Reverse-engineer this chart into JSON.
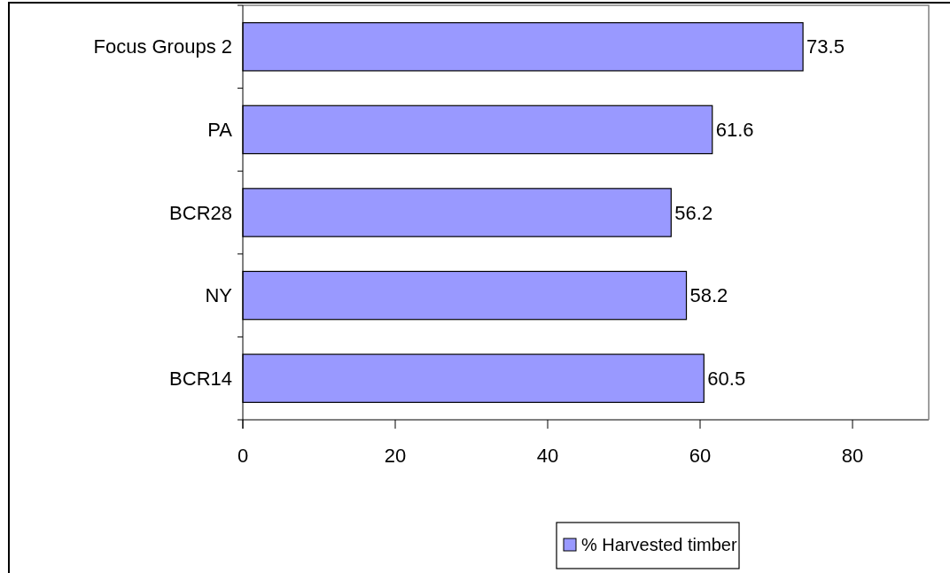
{
  "chart_data": {
    "type": "bar",
    "orientation": "horizontal",
    "categories": [
      "Focus Groups 2",
      "PA",
      "BCR28",
      "NY",
      "BCR14"
    ],
    "series": [
      {
        "name": "% Harvested timber",
        "color": "#9999ff",
        "values": [
          73.5,
          61.6,
          56.2,
          58.2,
          60.5
        ]
      }
    ],
    "xlim": [
      0,
      90
    ],
    "xticks": [
      0,
      20,
      40,
      60,
      80
    ],
    "data_labels": true,
    "legend": "bottom",
    "grid": false
  }
}
